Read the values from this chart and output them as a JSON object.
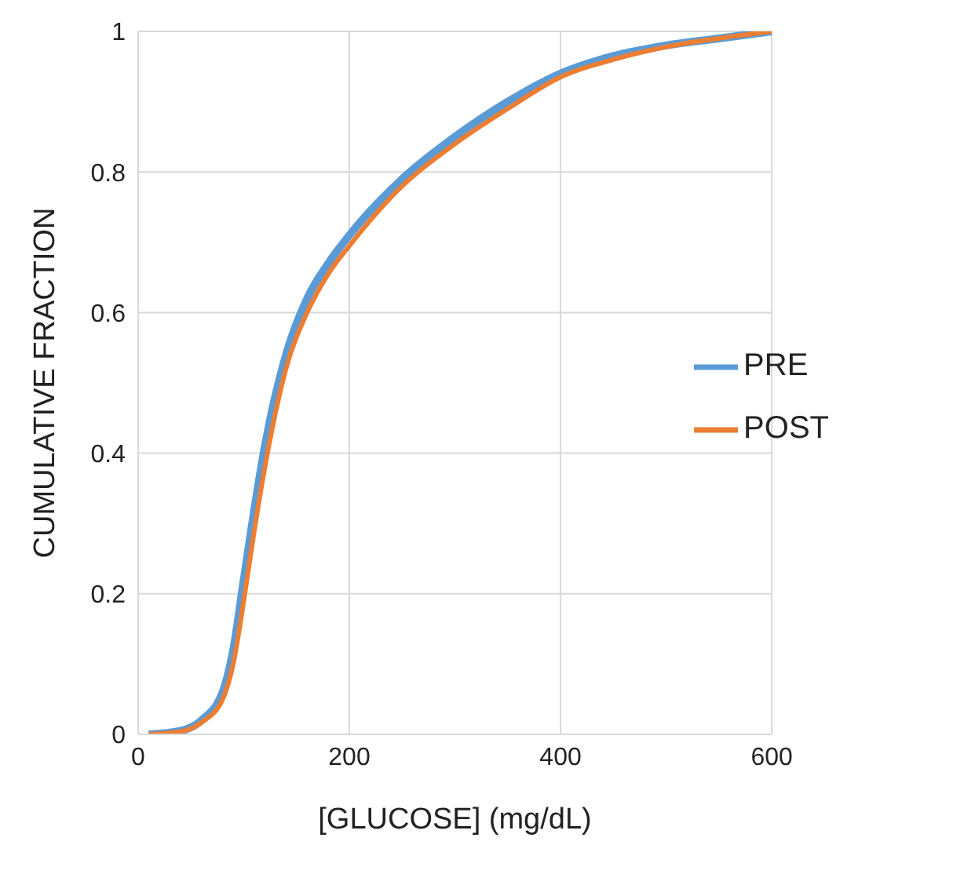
{
  "chart_data": {
    "type": "line",
    "xlabel": "[GLUCOSE] (mg/dL)",
    "ylabel": "CUMULATIVE FRACTION",
    "x": [
      10,
      40,
      60,
      80,
      90,
      100,
      110,
      120,
      140,
      160,
      180,
      200,
      250,
      300,
      350,
      400,
      450,
      500,
      550,
      600
    ],
    "series": [
      {
        "name": "PRE",
        "color": "#5b9bd5",
        "values": [
          0,
          0.005,
          0.02,
          0.06,
          0.12,
          0.22,
          0.32,
          0.41,
          0.54,
          0.62,
          0.67,
          0.71,
          0.79,
          0.85,
          0.9,
          0.94,
          0.965,
          0.98,
          0.99,
          1
        ]
      },
      {
        "name": "POST",
        "color": "#ed7d31",
        "values": [
          0,
          0.004,
          0.017,
          0.05,
          0.1,
          0.19,
          0.29,
          0.38,
          0.52,
          0.6,
          0.655,
          0.695,
          0.78,
          0.84,
          0.89,
          0.935,
          0.96,
          0.978,
          0.99,
          1
        ]
      }
    ],
    "xlim": [
      0,
      600
    ],
    "xticks": [
      0,
      200,
      400,
      600
    ],
    "ylim": [
      0,
      1
    ],
    "yticks": [
      0,
      0.2,
      0.4,
      0.6,
      0.8,
      1
    ],
    "grid": true,
    "legend": "right",
    "marker": "none",
    "line_style": "solid"
  }
}
